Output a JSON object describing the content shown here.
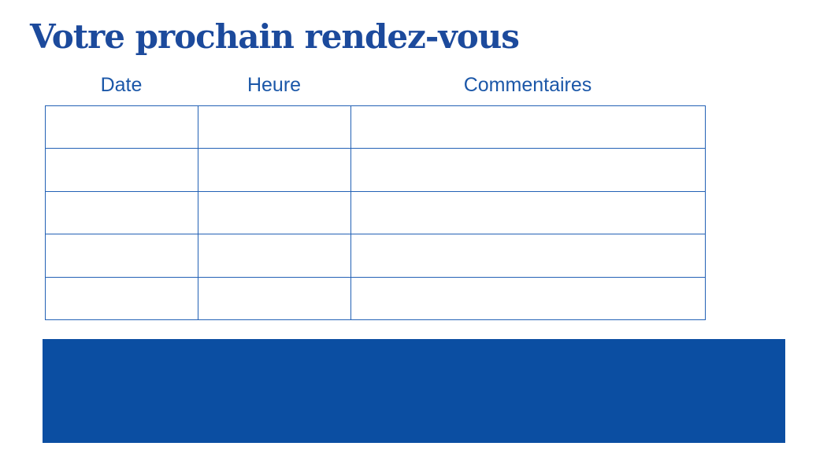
{
  "page": {
    "title": "Votre prochain rendez-vous"
  },
  "table": {
    "headers": [
      "Date",
      "Heure",
      "Commentaires"
    ],
    "row_count": 5,
    "rows": [
      [
        "",
        "",
        ""
      ],
      [
        "",
        "",
        ""
      ],
      [
        "",
        "",
        ""
      ],
      [
        "",
        "",
        ""
      ],
      [
        "",
        "",
        ""
      ]
    ]
  },
  "colors": {
    "title_text": "#1C4A9C",
    "header_text": "#1B57A8",
    "table_border": "#2361B5",
    "banner_fill": "#0B4EA2"
  }
}
